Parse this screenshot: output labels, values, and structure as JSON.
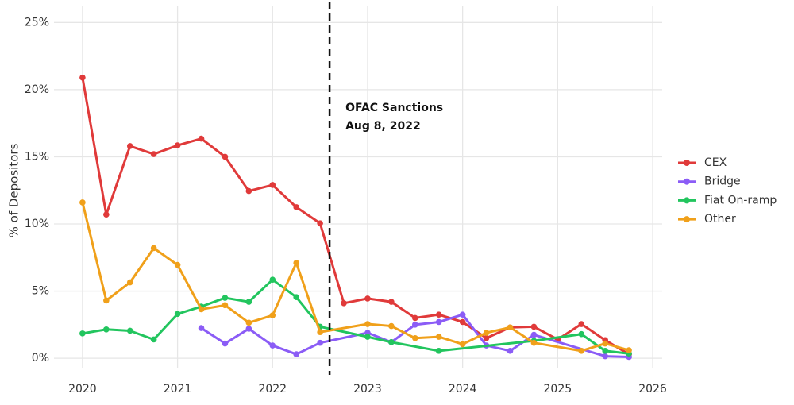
{
  "chart_data": {
    "type": "line",
    "y_label": "% of Depositors",
    "xlim": [
      2019.7,
      2026.1
    ],
    "xticks": [
      2020,
      2021,
      2022,
      2023,
      2024,
      2025,
      2026
    ],
    "ylim": [
      -0.7,
      26.2
    ],
    "yticks": [
      {
        "value": 0,
        "label": "0%"
      },
      {
        "value": 5,
        "label": "5%"
      },
      {
        "value": 10,
        "label": "10%"
      },
      {
        "value": 15,
        "label": "15%"
      },
      {
        "value": 20,
        "label": "20%"
      },
      {
        "value": 25,
        "label": "25%"
      }
    ],
    "grid": true,
    "legend": "right",
    "annotation": {
      "x": 2022.6,
      "lines": [
        "OFAC Sanctions",
        "Aug 8, 2022"
      ]
    },
    "series": [
      {
        "name": "CEX",
        "color": "#e03a3a",
        "x": [
          2020,
          2020.25,
          2020.5,
          2020.75,
          2021,
          2021.25,
          2021.5,
          2021.75,
          2022,
          2022.25,
          2022.5,
          2022.75,
          2023,
          2023.25,
          2023.5,
          2023.75,
          2024,
          2024.25,
          2024.5,
          2024.75,
          2025,
          2025.25,
          2025.5,
          2025.75
        ],
        "values": [
          20.9,
          10.7,
          15.8,
          15.2,
          15.85,
          16.35,
          15.0,
          12.45,
          12.9,
          11.25,
          10.05,
          4.1,
          4.45,
          4.2,
          3.0,
          3.25,
          2.7,
          1.5,
          2.3,
          2.35,
          1.4,
          2.55,
          1.35,
          0.3
        ]
      },
      {
        "name": "Bridge",
        "color": "#8b5cf6",
        "x": [
          2021.25,
          2021.5,
          2021.75,
          2022,
          2022.25,
          2022.5,
          2023,
          2023.25,
          2023.5,
          2023.75,
          2024,
          2024.25,
          2024.5,
          2024.75,
          2025.5,
          2025.75
        ],
        "values": [
          2.25,
          1.1,
          2.2,
          0.95,
          0.3,
          1.15,
          1.9,
          1.2,
          2.5,
          2.7,
          3.25,
          0.95,
          0.55,
          1.75,
          0.15,
          0.1
        ]
      },
      {
        "name": "Fiat On-ramp",
        "color": "#22c55e",
        "x": [
          2020,
          2020.25,
          2020.5,
          2020.75,
          2021,
          2021.25,
          2021.5,
          2021.75,
          2022,
          2022.25,
          2022.5,
          2023,
          2023.25,
          2023.75,
          2024.75,
          2025.25,
          2025.5,
          2025.75
        ],
        "values": [
          1.85,
          2.15,
          2.05,
          1.4,
          3.3,
          3.85,
          4.5,
          4.2,
          5.85,
          4.55,
          2.35,
          1.6,
          1.2,
          0.55,
          1.3,
          1.8,
          0.55,
          0.35
        ]
      },
      {
        "name": "Other",
        "color": "#f0a01a",
        "x": [
          2020,
          2020.25,
          2020.5,
          2020.75,
          2021,
          2021.25,
          2021.5,
          2021.75,
          2022,
          2022.25,
          2022.5,
          2023,
          2023.25,
          2023.5,
          2023.75,
          2024,
          2024.25,
          2024.5,
          2024.75,
          2025.25,
          2025.5,
          2025.75
        ],
        "values": [
          11.6,
          4.3,
          5.65,
          8.2,
          6.95,
          3.65,
          3.95,
          2.65,
          3.2,
          7.1,
          1.95,
          2.55,
          2.4,
          1.5,
          1.6,
          1.05,
          1.9,
          2.3,
          1.15,
          0.55,
          1.1,
          0.6
        ]
      }
    ]
  }
}
